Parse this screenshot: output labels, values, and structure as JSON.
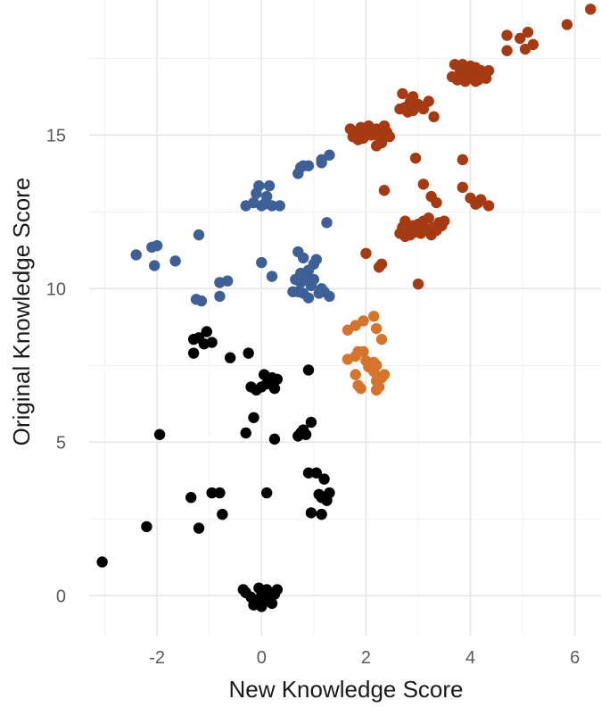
{
  "chart_data": {
    "type": "scatter",
    "title": "",
    "xlabel": "New Knowledge Score",
    "ylabel": "Original Knowledge Score",
    "xlim": [
      -3.3,
      6.5
    ],
    "ylim": [
      -1.3,
      19.4
    ],
    "x_ticks": [
      -2,
      0,
      2,
      4,
      6
    ],
    "y_ticks": [
      0,
      5,
      10,
      15
    ],
    "x_tick_labels": [
      "-2",
      "0",
      "2",
      "4",
      "6"
    ],
    "y_tick_labels": [
      "0",
      "5",
      "10",
      "15"
    ],
    "grid": true,
    "legend": "none",
    "colors": {
      "black": "#000000",
      "blue": "#3f5f97",
      "orange": "#d6742c",
      "rust": "#a63a12"
    },
    "series": [
      {
        "color": "#000000",
        "points": [
          [
            -3.05,
            1.1
          ],
          [
            -2.2,
            2.25
          ],
          [
            -1.95,
            5.25
          ],
          [
            -1.35,
            3.2
          ],
          [
            -1.2,
            2.2
          ],
          [
            -0.95,
            3.35
          ],
          [
            -0.8,
            3.35
          ],
          [
            -0.75,
            2.65
          ],
          [
            0.1,
            3.35
          ],
          [
            -1.3,
            7.9
          ],
          [
            -1.3,
            8.35
          ],
          [
            -1.2,
            8.4
          ],
          [
            -1.1,
            8.2
          ],
          [
            -1.05,
            8.6
          ],
          [
            -0.95,
            8.25
          ],
          [
            -0.6,
            7.75
          ],
          [
            -0.25,
            7.9
          ],
          [
            -0.3,
            5.3
          ],
          [
            -0.15,
            5.8
          ],
          [
            0.25,
            5.1
          ],
          [
            -0.2,
            6.8
          ],
          [
            -0.1,
            6.7
          ],
          [
            0.0,
            6.8
          ],
          [
            0.05,
            7.2
          ],
          [
            0.1,
            6.9
          ],
          [
            0.2,
            7.1
          ],
          [
            0.25,
            6.75
          ],
          [
            0.3,
            7.05
          ],
          [
            0.15,
            6.95
          ],
          [
            0.75,
            5.3
          ],
          [
            0.8,
            5.4
          ],
          [
            0.85,
            5.25
          ],
          [
            0.9,
            7.35
          ],
          [
            0.95,
            5.65
          ],
          [
            0.7,
            5.2
          ],
          [
            0.9,
            4.0
          ],
          [
            1.05,
            4.0
          ],
          [
            1.1,
            3.3
          ],
          [
            1.15,
            3.2
          ],
          [
            1.2,
            3.8
          ],
          [
            1.25,
            3.1
          ],
          [
            1.3,
            3.35
          ],
          [
            0.95,
            2.7
          ],
          [
            1.15,
            2.65
          ],
          [
            -0.35,
            0.2
          ],
          [
            -0.3,
            0.1
          ],
          [
            -0.2,
            -0.05
          ],
          [
            -0.15,
            -0.3
          ],
          [
            -0.05,
            0.25
          ],
          [
            0.0,
            0.0
          ],
          [
            0.05,
            -0.2
          ],
          [
            0.1,
            0.2
          ],
          [
            0.15,
            -0.1
          ],
          [
            0.2,
            -0.25
          ],
          [
            0.25,
            0.05
          ],
          [
            0.3,
            0.2
          ],
          [
            -0.1,
            -0.15
          ],
          [
            0.0,
            -0.35
          ]
        ]
      },
      {
        "color": "#3f5f97",
        "points": [
          [
            -2.4,
            11.1
          ],
          [
            -2.1,
            11.35
          ],
          [
            -2.05,
            10.75
          ],
          [
            -2.0,
            11.4
          ],
          [
            -1.65,
            10.9
          ],
          [
            -1.2,
            11.75
          ],
          [
            -1.25,
            9.65
          ],
          [
            -1.15,
            9.6
          ],
          [
            -0.8,
            10.2
          ],
          [
            -0.8,
            9.75
          ],
          [
            -0.65,
            10.25
          ],
          [
            -0.3,
            12.7
          ],
          [
            -0.15,
            12.8
          ],
          [
            -0.1,
            13.1
          ],
          [
            -0.05,
            13.35
          ],
          [
            0.0,
            12.7
          ],
          [
            0.05,
            12.75
          ],
          [
            0.1,
            13.0
          ],
          [
            0.15,
            13.35
          ],
          [
            0.2,
            12.7
          ],
          [
            0.35,
            12.7
          ],
          [
            0.0,
            10.85
          ],
          [
            0.2,
            10.4
          ],
          [
            0.7,
            13.75
          ],
          [
            0.75,
            13.95
          ],
          [
            0.8,
            14.0
          ],
          [
            0.9,
            14.0
          ],
          [
            1.15,
            14.1
          ],
          [
            1.15,
            14.2
          ],
          [
            1.3,
            14.35
          ],
          [
            1.25,
            12.15
          ],
          [
            0.65,
            10.3
          ],
          [
            0.7,
            9.9
          ],
          [
            0.7,
            11.2
          ],
          [
            0.75,
            10.2
          ],
          [
            0.8,
            9.85
          ],
          [
            0.8,
            11.0
          ],
          [
            0.85,
            10.3
          ],
          [
            0.9,
            9.7
          ],
          [
            0.95,
            10.1
          ],
          [
            1.0,
            10.3
          ],
          [
            1.0,
            10.8
          ],
          [
            1.05,
            10.95
          ],
          [
            1.1,
            9.85
          ],
          [
            1.15,
            10.0
          ],
          [
            1.2,
            9.9
          ],
          [
            1.3,
            9.75
          ],
          [
            0.6,
            9.9
          ],
          [
            0.9,
            10.6
          ],
          [
            0.75,
            10.5
          ]
        ]
      },
      {
        "color": "#d6742c",
        "points": [
          [
            1.65,
            8.65
          ],
          [
            1.8,
            8.8
          ],
          [
            1.95,
            8.95
          ],
          [
            2.15,
            9.1
          ],
          [
            2.2,
            8.7
          ],
          [
            2.3,
            8.35
          ],
          [
            1.65,
            7.7
          ],
          [
            1.8,
            7.8
          ],
          [
            1.85,
            7.95
          ],
          [
            1.95,
            7.95
          ],
          [
            2.0,
            7.65
          ],
          [
            1.8,
            7.2
          ],
          [
            1.85,
            6.85
          ],
          [
            1.9,
            6.75
          ],
          [
            2.05,
            7.45
          ],
          [
            2.1,
            7.55
          ],
          [
            2.15,
            7.3
          ],
          [
            2.2,
            7.0
          ],
          [
            2.2,
            6.7
          ],
          [
            2.25,
            6.8
          ],
          [
            2.3,
            7.1
          ],
          [
            2.35,
            7.2
          ],
          [
            2.15,
            7.6
          ],
          [
            2.2,
            7.5
          ]
        ]
      },
      {
        "color": "#a63a12",
        "points": [
          [
            6.3,
            19.1
          ],
          [
            5.85,
            18.6
          ],
          [
            5.2,
            17.95
          ],
          [
            5.1,
            18.35
          ],
          [
            5.05,
            17.8
          ],
          [
            4.95,
            18.15
          ],
          [
            4.7,
            18.25
          ],
          [
            4.7,
            17.75
          ],
          [
            3.7,
            17.3
          ],
          [
            3.75,
            16.8
          ],
          [
            3.8,
            17.05
          ],
          [
            3.85,
            17.3
          ],
          [
            3.9,
            16.85
          ],
          [
            3.95,
            17.1
          ],
          [
            4.0,
            17.25
          ],
          [
            4.05,
            16.95
          ],
          [
            4.1,
            17.2
          ],
          [
            4.15,
            16.8
          ],
          [
            4.2,
            17.1
          ],
          [
            4.25,
            17.0
          ],
          [
            4.3,
            16.85
          ],
          [
            4.35,
            17.1
          ],
          [
            3.65,
            16.9
          ],
          [
            3.9,
            16.75
          ],
          [
            4.1,
            16.75
          ],
          [
            2.7,
            16.35
          ],
          [
            2.9,
            16.25
          ],
          [
            2.65,
            15.85
          ],
          [
            2.75,
            15.9
          ],
          [
            2.8,
            15.75
          ],
          [
            2.9,
            15.8
          ],
          [
            3.0,
            16.0
          ],
          [
            3.05,
            15.95
          ],
          [
            3.1,
            15.85
          ],
          [
            3.2,
            16.1
          ],
          [
            3.3,
            15.6
          ],
          [
            2.85,
            16.1
          ],
          [
            1.7,
            15.2
          ],
          [
            1.75,
            14.95
          ],
          [
            1.8,
            15.05
          ],
          [
            1.9,
            15.25
          ],
          [
            1.95,
            14.9
          ],
          [
            2.0,
            15.1
          ],
          [
            2.05,
            15.3
          ],
          [
            2.1,
            15.0
          ],
          [
            2.15,
            15.05
          ],
          [
            2.2,
            15.2
          ],
          [
            2.25,
            14.95
          ],
          [
            2.3,
            15.1
          ],
          [
            2.35,
            15.3
          ],
          [
            2.4,
            15.1
          ],
          [
            2.2,
            14.65
          ],
          [
            2.3,
            14.75
          ],
          [
            2.45,
            14.95
          ],
          [
            1.85,
            14.85
          ],
          [
            2.95,
            14.25
          ],
          [
            3.85,
            14.2
          ],
          [
            3.1,
            13.4
          ],
          [
            3.25,
            13.0
          ],
          [
            3.35,
            12.8
          ],
          [
            3.85,
            13.3
          ],
          [
            4.0,
            12.95
          ],
          [
            4.1,
            12.75
          ],
          [
            4.15,
            12.8
          ],
          [
            4.2,
            12.9
          ],
          [
            4.35,
            12.7
          ],
          [
            2.35,
            13.2
          ],
          [
            2.65,
            11.8
          ],
          [
            2.7,
            12.0
          ],
          [
            2.75,
            12.2
          ],
          [
            2.8,
            11.9
          ],
          [
            2.85,
            11.75
          ],
          [
            2.9,
            12.05
          ],
          [
            2.95,
            11.85
          ],
          [
            3.0,
            12.1
          ],
          [
            3.05,
            11.8
          ],
          [
            3.1,
            12.2
          ],
          [
            3.15,
            11.95
          ],
          [
            3.2,
            12.3
          ],
          [
            3.25,
            11.75
          ],
          [
            3.3,
            12.0
          ],
          [
            3.35,
            11.9
          ],
          [
            3.4,
            12.15
          ],
          [
            3.45,
            12.05
          ],
          [
            3.5,
            12.2
          ],
          [
            2.75,
            11.7
          ],
          [
            2.3,
            10.8
          ],
          [
            2.25,
            10.7
          ],
          [
            2.0,
            11.15
          ],
          [
            3.0,
            10.15
          ]
        ]
      }
    ]
  }
}
